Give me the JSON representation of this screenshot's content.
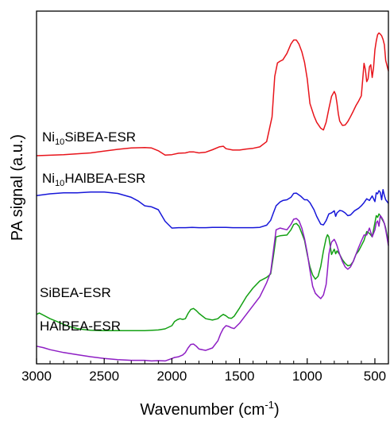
{
  "chart_data": {
    "type": "line",
    "title": "",
    "xlabel": "Wavenumber (cm-1)",
    "xlabel_parts": {
      "main": "Wavenumber (cm",
      "sup": "-1",
      "close": ")"
    },
    "ylabel": "PA signal (a.u.)",
    "xlim": [
      3000,
      400
    ],
    "x_reversed": true,
    "y_units": "arbitrary",
    "y_ticks": "none",
    "ylim": [
      0,
      100
    ],
    "x_ticks": [
      3000,
      2500,
      2000,
      1500,
      1000,
      500
    ],
    "x_tick_labels": [
      "3000",
      "2500",
      "2000",
      "1500",
      "1000",
      "500"
    ],
    "grid": false,
    "legend": "none",
    "series": [
      {
        "name": "Ni10SiBEA-ESR",
        "label_parts": {
          "pre": "Ni",
          "sub": "10",
          "post": "SiBEA-ESR"
        },
        "color": "#e8141b",
        "x": [
          3000,
          2800,
          2600,
          2400,
          2300,
          2200,
          2150,
          2100,
          2050,
          2000,
          1950,
          1900,
          1870,
          1840,
          1800,
          1750,
          1700,
          1650,
          1620,
          1600,
          1550,
          1500,
          1450,
          1400,
          1350,
          1300,
          1260,
          1240,
          1220,
          1200,
          1180,
          1150,
          1120,
          1100,
          1080,
          1060,
          1040,
          1020,
          1000,
          980,
          950,
          930,
          900,
          880,
          860,
          840,
          820,
          800,
          790,
          780,
          770,
          760,
          740,
          720,
          700,
          680,
          660,
          640,
          620,
          600,
          590,
          580,
          570,
          560,
          550,
          540,
          530,
          520,
          510,
          500,
          490,
          480,
          470,
          460,
          450,
          440,
          430,
          420,
          400
        ],
        "y": [
          59,
          59.3,
          59.8,
          60.8,
          61.2,
          61.3,
          61.2,
          60.4,
          59.2,
          59.3,
          59.7,
          59.8,
          60.1,
          60.1,
          59.8,
          60.0,
          60.7,
          61.5,
          61.7,
          61.0,
          60.6,
          60.6,
          60.9,
          61.1,
          61.5,
          63.0,
          70.0,
          81.5,
          85.3,
          85.8,
          86.2,
          88.0,
          90.7,
          91.8,
          91.8,
          90.6,
          88.5,
          85.5,
          80.8,
          73.8,
          70.3,
          68.5,
          66.8,
          66.3,
          68.5,
          72.3,
          75.8,
          77.2,
          76.3,
          73.8,
          70.8,
          68.8,
          67.6,
          67.7,
          68.7,
          70.1,
          71.6,
          73.2,
          74.5,
          76.0,
          80.5,
          85.2,
          83.4,
          80.0,
          80.8,
          84.2,
          84.8,
          81.2,
          84.0,
          89.0,
          91.5,
          93.3,
          93.8,
          93.5,
          93.0,
          92.0,
          90.5,
          86.0,
          83.0
        ]
      },
      {
        "name": "Ni10HAlBEA-ESR",
        "label_parts": {
          "pre": "Ni",
          "sub": "10",
          "post": "HAlBEA-ESR"
        },
        "color": "#1717d9",
        "x": [
          3000,
          2900,
          2800,
          2700,
          2600,
          2500,
          2400,
          2300,
          2250,
          2200,
          2150,
          2100,
          2050,
          2000,
          1950,
          1900,
          1850,
          1800,
          1750,
          1700,
          1650,
          1600,
          1550,
          1500,
          1450,
          1400,
          1350,
          1300,
          1270,
          1250,
          1230,
          1200,
          1180,
          1150,
          1120,
          1100,
          1080,
          1050,
          1020,
          1000,
          980,
          950,
          930,
          900,
          880,
          860,
          840,
          820,
          800,
          790,
          780,
          760,
          740,
          720,
          700,
          680,
          650,
          620,
          600,
          580,
          560,
          540,
          520,
          500,
          490,
          480,
          470,
          460,
          450,
          440,
          430,
          420,
          400
        ],
        "y": [
          47.7,
          48.2,
          48.5,
          48.5,
          48.7,
          48.7,
          48.3,
          47.2,
          46.2,
          44.8,
          44.5,
          43.7,
          40.4,
          38.5,
          38.6,
          38.6,
          38.7,
          38.6,
          38.6,
          38.7,
          38.7,
          38.7,
          38.6,
          38.6,
          38.6,
          38.6,
          38.7,
          39.3,
          40.7,
          42.8,
          44.8,
          45.9,
          46.3,
          46.5,
          47.2,
          48.3,
          48.4,
          47.6,
          46.5,
          46.5,
          45.7,
          43.7,
          41.8,
          39.6,
          39.4,
          40.6,
          42.5,
          42.8,
          43.4,
          41.8,
          42.8,
          43.5,
          43.3,
          42.8,
          42.0,
          42.2,
          43.4,
          44.1,
          44.8,
          45.7,
          46.8,
          46.3,
          47.6,
          46.0,
          48.5,
          48.2,
          49.1,
          48.6,
          46.5,
          49.4,
          47.7,
          46.5,
          45.5
        ]
      },
      {
        "name": "SiBEA-ESR",
        "label_parts": {
          "pre": "SiBEA-ESR",
          "sub": "",
          "post": ""
        },
        "color": "#13a013",
        "x": [
          3000,
          2980,
          2950,
          2900,
          2850,
          2800,
          2750,
          2700,
          2650,
          2600,
          2500,
          2400,
          2300,
          2200,
          2100,
          2050,
          2000,
          1980,
          1960,
          1940,
          1920,
          1900,
          1880,
          1860,
          1840,
          1820,
          1800,
          1750,
          1700,
          1660,
          1640,
          1620,
          1600,
          1580,
          1560,
          1540,
          1500,
          1450,
          1400,
          1350,
          1300,
          1270,
          1250,
          1230,
          1200,
          1150,
          1120,
          1100,
          1080,
          1060,
          1040,
          1020,
          1000,
          980,
          960,
          940,
          920,
          900,
          880,
          860,
          850,
          840,
          830,
          820,
          800,
          790,
          780,
          760,
          740,
          720,
          700,
          680,
          660,
          640,
          620,
          600,
          580,
          560,
          540,
          520,
          500,
          490,
          480,
          470,
          460,
          450,
          440,
          430,
          420,
          400
        ],
        "y": [
          14.0,
          14.4,
          13.8,
          12.8,
          12.0,
          11.2,
          10.5,
          10.0,
          9.7,
          9.5,
          9.4,
          9.4,
          9.4,
          9.4,
          9.6,
          9.9,
          10.8,
          12.0,
          12.5,
          12.8,
          12.6,
          12.8,
          14.3,
          15.4,
          15.7,
          15.1,
          14.3,
          12.8,
          12.4,
          12.8,
          13.5,
          14.0,
          13.6,
          13.0,
          12.9,
          13.5,
          15.8,
          19.0,
          21.5,
          23.5,
          24.5,
          25.5,
          30.5,
          36.0,
          36.3,
          36.5,
          38.0,
          39.5,
          39.8,
          39.0,
          37.0,
          35.0,
          31.0,
          27.5,
          25.2,
          24.0,
          24.8,
          27.6,
          32.0,
          35.6,
          36.6,
          36.0,
          33.5,
          31.0,
          32.5,
          31.2,
          32.0,
          31.0,
          29.5,
          28.5,
          27.8,
          28.0,
          29.0,
          31.0,
          32.0,
          33.5,
          35.0,
          37.5,
          37.0,
          36.0,
          40.0,
          42.0,
          41.5,
          42.5,
          42.0,
          41.2,
          40.5,
          39.8,
          38.5,
          34.5
        ]
      },
      {
        "name": "HAlBEA-ESR",
        "label_parts": {
          "pre": "HAlBEA-ESR",
          "sub": "",
          "post": ""
        },
        "color": "#8e1ec4",
        "x": [
          3000,
          2950,
          2900,
          2800,
          2700,
          2600,
          2500,
          2400,
          2300,
          2200,
          2150,
          2100,
          2050,
          2000,
          1980,
          1950,
          1920,
          1900,
          1880,
          1860,
          1840,
          1820,
          1800,
          1750,
          1700,
          1660,
          1640,
          1620,
          1600,
          1580,
          1560,
          1540,
          1500,
          1450,
          1400,
          1350,
          1300,
          1270,
          1250,
          1230,
          1200,
          1150,
          1120,
          1100,
          1080,
          1060,
          1040,
          1020,
          1000,
          980,
          960,
          940,
          920,
          900,
          880,
          860,
          850,
          840,
          830,
          820,
          800,
          790,
          780,
          760,
          740,
          720,
          700,
          680,
          660,
          640,
          620,
          600,
          580,
          560,
          540,
          520,
          500,
          490,
          480,
          470,
          460,
          450,
          440,
          430,
          420,
          400
        ],
        "y": [
          5.0,
          4.6,
          4.0,
          3.2,
          2.6,
          2.0,
          1.5,
          1.2,
          1.0,
          1.0,
          0.8,
          0.9,
          0.8,
          1.5,
          1.8,
          2.0,
          2.5,
          3.2,
          4.5,
          5.5,
          5.6,
          5.0,
          4.2,
          3.8,
          4.5,
          6.5,
          8.5,
          10.0,
          10.8,
          10.6,
          10.2,
          10.0,
          11.5,
          14.0,
          16.5,
          19.0,
          23.0,
          26.0,
          32.0,
          38.0,
          38.5,
          38.0,
          39.5,
          41.0,
          41.2,
          40.5,
          38.5,
          35.5,
          31.5,
          26.5,
          22.0,
          20.0,
          19.2,
          18.5,
          19.5,
          22.5,
          26.5,
          31.0,
          33.0,
          34.5,
          35.3,
          34.5,
          33.5,
          31.0,
          29.0,
          27.5,
          26.8,
          27.5,
          29.0,
          31.0,
          33.0,
          34.8,
          36.5,
          36.5,
          38.5,
          36.0,
          38.0,
          40.0,
          40.5,
          39.0,
          42.0,
          41.5,
          40.8,
          39.8,
          38.0,
          33.5
        ]
      }
    ]
  }
}
